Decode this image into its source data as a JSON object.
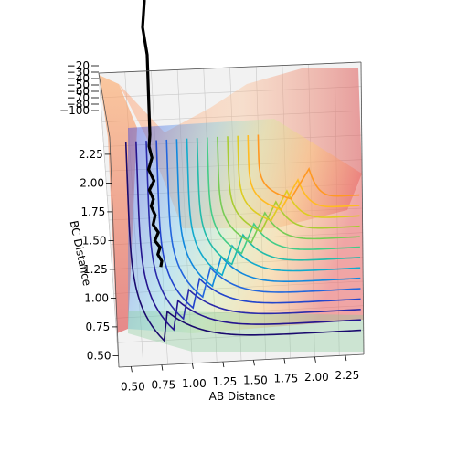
{
  "chart_data": {
    "type": "surface",
    "subtype": "3d-surface-with-contours-and-trajectory",
    "title": "",
    "xlabel": "AB Distance",
    "ylabel": "BC Distance",
    "zlabel": "",
    "x_ticks": [
      "0.50",
      "0.75",
      "1.00",
      "1.25",
      "1.50",
      "1.75",
      "2.00",
      "2.25"
    ],
    "y_ticks": [
      "0.50",
      "0.75",
      "1.00",
      "1.25",
      "1.50",
      "1.75",
      "2.00",
      "2.25"
    ],
    "z_ticks": [
      "−20",
      "−30",
      "−40",
      "−50",
      "−60",
      "−70",
      "−80",
      "−100"
    ],
    "xlim": [
      0.4,
      2.4
    ],
    "ylim": [
      0.4,
      2.4
    ],
    "colormap": "rainbow",
    "grid": true,
    "trajectory_color": "#000000",
    "contour_levels_note": "dense contour lines of the potential energy surface",
    "trajectory": {
      "ab": [
        0.72,
        0.71,
        0.73,
        0.7,
        0.74,
        0.7,
        0.73,
        0.71,
        0.74,
        0.72,
        0.76,
        0.73,
        0.77,
        0.75,
        0.78,
        0.77
      ],
      "bc": [
        2.4,
        2.3,
        2.2,
        2.1,
        2.0,
        1.92,
        1.84,
        1.78,
        1.7,
        1.62,
        1.55,
        1.48,
        1.42,
        1.36,
        1.3,
        1.25
      ]
    }
  }
}
